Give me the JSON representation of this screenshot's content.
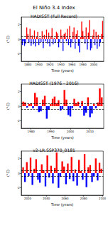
{
  "title": "El Niño 3.4 Index",
  "chart_data": [
    {
      "type": "bar",
      "title": "HADISST (Full Record)",
      "x_label": "Time (years)",
      "y_label": "(°C)",
      "x": [
        1870,
        1872,
        1874,
        1876,
        1878,
        1880,
        1882,
        1884,
        1886,
        1888,
        1890,
        1892,
        1894,
        1896,
        1898,
        1900,
        1902,
        1904,
        1906,
        1908,
        1910,
        1912,
        1914,
        1916,
        1918,
        1920,
        1922,
        1924,
        1926,
        1928,
        1930,
        1932,
        1934,
        1936,
        1938,
        1940,
        1942,
        1944,
        1946,
        1948,
        1950,
        1952,
        1954,
        1956,
        1958,
        1960,
        1962,
        1964,
        1966,
        1968,
        1970,
        1972,
        1974,
        1976,
        1978,
        1980,
        1982,
        1984,
        1986,
        1988,
        1990,
        1992,
        1994,
        1996,
        1998,
        2000,
        2002,
        2004,
        2006,
        2008,
        2010,
        2012,
        2014,
        2016
      ],
      "values": [
        -0.8,
        -0.3,
        -0.9,
        -0.6,
        1.6,
        0.7,
        -0.5,
        1.4,
        -0.9,
        0.5,
        -0.7,
        1.2,
        -1.0,
        0.3,
        1.0,
        -0.8,
        0.2,
        -0.4,
        1.1,
        -1.2,
        0.6,
        -0.3,
        1.3,
        -0.6,
        0.9,
        -1.0,
        0.4,
        1.5,
        -0.7,
        0.2,
        -0.5,
        1.0,
        0.8,
        -1.1,
        -0.4,
        1.3,
        0.5,
        -1.6,
        0.7,
        0.9,
        -0.3,
        1.4,
        -0.8,
        1.8,
        -1.1,
        -0.5,
        1.0,
        1.6,
        -1.3,
        0.7,
        1.2,
        -0.9,
        -1.8,
        0.3,
        2.4,
        1.1,
        0.4,
        -0.6,
        1.6,
        -1.4,
        0.9,
        2.6,
        -1.5,
        -1.2,
        0.5,
        1.3,
        -0.8,
        1.0,
        -1.3,
        0.6,
        -1.0,
        -0.4,
        0.7,
        2.5
      ],
      "colors": [
        "blue",
        "blue",
        "blue",
        "blue",
        "red",
        "red",
        "blue",
        "red",
        "blue",
        "red",
        "blue",
        "red",
        "blue",
        "red",
        "red",
        "blue",
        "red",
        "blue",
        "red",
        "blue",
        "red",
        "blue",
        "red",
        "blue",
        "red",
        "blue",
        "red",
        "red",
        "blue",
        "red",
        "blue",
        "red",
        "red",
        "blue",
        "blue",
        "red",
        "red",
        "blue",
        "red",
        "red",
        "blue",
        "red",
        "blue",
        "red",
        "blue",
        "blue",
        "red",
        "red",
        "blue",
        "red",
        "red",
        "blue",
        "blue",
        "red",
        "red",
        "red",
        "red",
        "blue",
        "red",
        "blue",
        "red",
        "red",
        "blue",
        "blue",
        "red",
        "red",
        "blue",
        "red",
        "blue",
        "red",
        "blue",
        "blue",
        "red",
        "red"
      ],
      "reference_lines": [
        0.4,
        -0.4
      ],
      "xlim": [
        1868,
        2018
      ],
      "xticks": [
        1880,
        1900,
        1920,
        1940,
        1960,
        1980,
        2000
      ],
      "ylim": [
        -3,
        3
      ],
      "yticks": [
        -2,
        0,
        2
      ],
      "grid": false
    },
    {
      "type": "bar",
      "title": "HADISST (1976 - 2016)",
      "x_label": "Time (years)",
      "y_label": "(°C)",
      "x": [
        1976,
        1977,
        1978,
        1979,
        1980,
        1981,
        1982,
        1983,
        1984,
        1985,
        1986,
        1987,
        1988,
        1989,
        1990,
        1991,
        1992,
        1993,
        1994,
        1995,
        1996,
        1997,
        1998,
        1999,
        2000,
        2001,
        2002,
        2003,
        2004,
        2005,
        2006,
        2007,
        2008,
        2009,
        2010,
        2011,
        2012,
        2013,
        2014,
        2015,
        2016
      ],
      "values": [
        0.6,
        0.5,
        -0.2,
        0.3,
        0.4,
        -0.3,
        1.8,
        1.2,
        -0.8,
        -0.7,
        0.9,
        1.4,
        -1.7,
        -0.5,
        0.3,
        1.0,
        1.3,
        0.4,
        0.8,
        -0.6,
        -0.4,
        2.2,
        0.9,
        -1.2,
        -1.4,
        -0.3,
        1.0,
        0.4,
        0.6,
        -0.2,
        0.7,
        -1.3,
        -0.9,
        1.2,
        -1.5,
        -1.0,
        0.3,
        -0.3,
        0.5,
        2.4,
        1.2
      ],
      "colors": [
        "red",
        "red",
        "blue",
        "red",
        "red",
        "blue",
        "red",
        "red",
        "blue",
        "blue",
        "red",
        "red",
        "blue",
        "blue",
        "red",
        "red",
        "red",
        "red",
        "red",
        "blue",
        "blue",
        "red",
        "red",
        "blue",
        "blue",
        "blue",
        "red",
        "red",
        "red",
        "blue",
        "red",
        "blue",
        "blue",
        "red",
        "blue",
        "blue",
        "red",
        "blue",
        "red",
        "red",
        "red"
      ],
      "reference_lines": [
        0.4,
        -0.4
      ],
      "xlim": [
        1975,
        2017
      ],
      "xticks": [
        1980,
        1990,
        2000,
        2010
      ],
      "ylim": [
        -3,
        3
      ],
      "yticks": [
        -2,
        0,
        2
      ],
      "grid": false
    },
    {
      "type": "bar",
      "title": "v2-LR.SSP370_0181",
      "x_label": "Time (years)",
      "y_label": "(°C)",
      "x": [
        2015,
        2017,
        2019,
        2021,
        2023,
        2025,
        2027,
        2029,
        2031,
        2033,
        2035,
        2037,
        2039,
        2041,
        2043,
        2045,
        2047,
        2049,
        2051,
        2053,
        2055,
        2057,
        2059,
        2061,
        2063,
        2065,
        2067,
        2069,
        2071,
        2073,
        2075,
        2077,
        2079,
        2081,
        2083,
        2085,
        2087,
        2089,
        2091,
        2093,
        2095,
        2097,
        2099
      ],
      "values": [
        0.8,
        -1.2,
        1.5,
        -0.4,
        2.1,
        -1.6,
        0.6,
        1.9,
        -0.9,
        -1.3,
        1.2,
        0.4,
        -1.8,
        2.4,
        -0.6,
        1.0,
        -1.4,
        0.7,
        2.8,
        -2.0,
        -0.5,
        1.6,
        0.9,
        -1.5,
        1.3,
        -0.8,
        2.2,
        -1.1,
        0.5,
        -1.7,
        1.8,
        0.3,
        -0.9,
        2.6,
        -1.9,
        0.8,
        1.1,
        -1.2,
        -0.4,
        2.0,
        -1.0,
        1.4,
        0.6
      ],
      "colors": [
        "red",
        "blue",
        "red",
        "blue",
        "red",
        "blue",
        "red",
        "red",
        "blue",
        "blue",
        "red",
        "red",
        "blue",
        "red",
        "blue",
        "red",
        "blue",
        "red",
        "red",
        "blue",
        "blue",
        "red",
        "red",
        "blue",
        "red",
        "blue",
        "red",
        "blue",
        "red",
        "blue",
        "red",
        "red",
        "blue",
        "red",
        "blue",
        "red",
        "red",
        "blue",
        "blue",
        "red",
        "blue",
        "red",
        "red"
      ],
      "reference_lines": [
        0.4,
        -0.4
      ],
      "xlim": [
        2013,
        2101
      ],
      "xticks": [
        2020,
        2040,
        2060,
        2080,
        2100
      ],
      "ylim": [
        -3,
        3
      ],
      "yticks": [
        -2,
        0,
        2
      ],
      "grid": false
    }
  ]
}
